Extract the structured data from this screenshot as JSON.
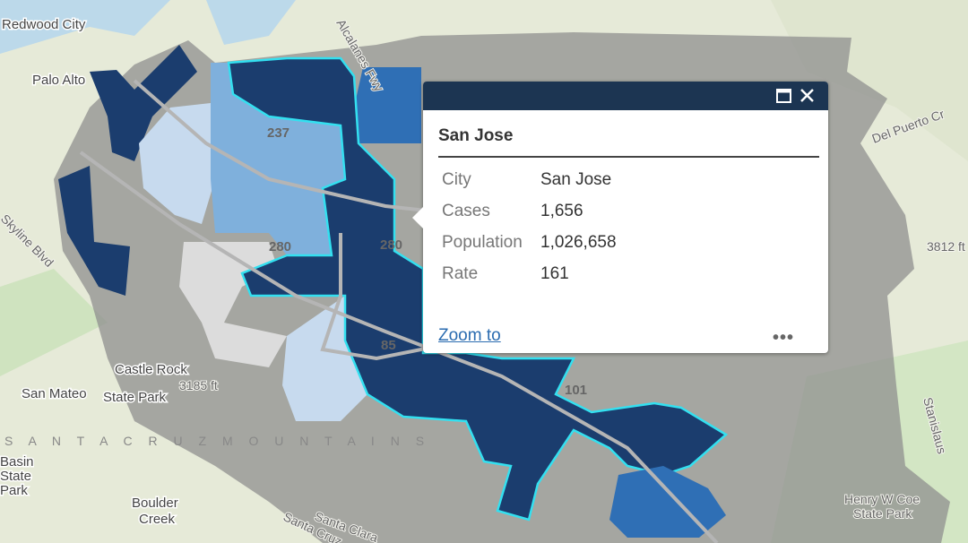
{
  "map": {
    "labels": [
      "Redwood City",
      "Palo Alto",
      "Castle Rock",
      "State Park",
      "San Mateo",
      "3185 ft",
      "S A N T A   C R U Z   M O U N T A I N S",
      "Boulder",
      "Creek",
      "Henry W Coe",
      "State Park",
      "Stanislaus",
      "Del Puerto Cr",
      "3812 ft",
      "Skyline Blvd",
      "Basin",
      "State",
      "Park",
      "Santa Clara",
      "Santa Cruz",
      "Alcalanes Fwy"
    ],
    "highways": [
      "237",
      "280",
      "280",
      "85",
      "101"
    ]
  },
  "popup": {
    "title": "San Jose",
    "rows": [
      [
        "City",
        "San Jose"
      ],
      [
        "Cases",
        "1,656"
      ],
      [
        "Population",
        "1,026,658"
      ],
      [
        "Rate",
        "161"
      ]
    ],
    "zoom_link": "Zoom to"
  }
}
